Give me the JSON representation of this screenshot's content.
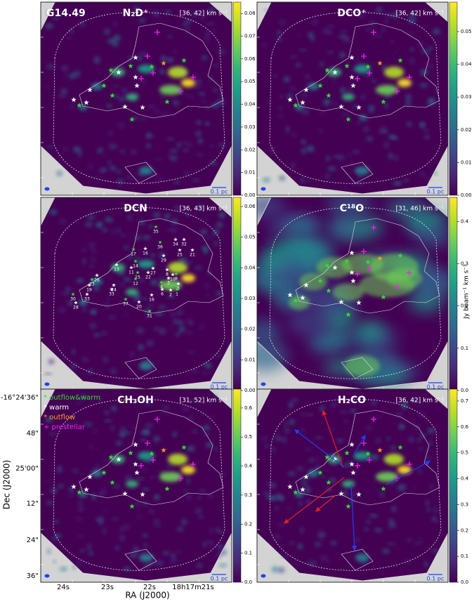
{
  "figure_label": "G14.49",
  "panels": [
    {
      "title": "N₂D⁺",
      "velocity_range": "[36, 42] km s⁻¹",
      "scale_bar": "0.1 pc",
      "colorbar": {
        "lim": [
          0,
          0.085
        ],
        "ticks": [
          {
            "value": 0,
            "label": "0.00"
          },
          {
            "value": 0.01,
            "label": "0.01"
          },
          {
            "value": 0.02,
            "label": "0.02"
          },
          {
            "value": 0.03,
            "label": "0.03"
          },
          {
            "value": 0.04,
            "label": "0.04"
          },
          {
            "value": 0.05,
            "label": "0.05"
          },
          {
            "value": 0.06,
            "label": "0.06"
          },
          {
            "value": 0.07,
            "label": "0.07"
          },
          {
            "value": 0.08,
            "label": "0.08"
          }
        ]
      }
    },
    {
      "title": "DCO⁺",
      "velocity_range": "[36, 42] km s⁻¹",
      "scale_bar": "0.1 pc",
      "colorbar": {
        "lim": [
          0,
          0.059
        ],
        "ticks": [
          {
            "value": 0,
            "label": "0.00"
          },
          {
            "value": 0.01,
            "label": "0.01"
          },
          {
            "value": 0.02,
            "label": "0.02"
          },
          {
            "value": 0.03,
            "label": "0.03"
          },
          {
            "value": 0.04,
            "label": "0.04"
          },
          {
            "value": 0.05,
            "label": "0.05"
          }
        ]
      }
    },
    {
      "title": "DCN",
      "velocity_range": "[36, 43] km s⁻¹",
      "scale_bar": "0.1 pc",
      "colorbar": {
        "lim": [
          0,
          0.063
        ],
        "ticks": [
          {
            "value": 0,
            "label": "0.00"
          },
          {
            "value": 0.01,
            "label": "0.01"
          },
          {
            "value": 0.02,
            "label": "0.02"
          },
          {
            "value": 0.03,
            "label": "0.03"
          },
          {
            "value": 0.04,
            "label": "0.04"
          },
          {
            "value": 0.05,
            "label": "0.05"
          },
          {
            "value": 0.06,
            "label": "0.06"
          }
        ]
      }
    },
    {
      "title": "C¹⁸O",
      "velocity_range": "[31, 46] km s⁻¹",
      "scale_bar": "0.1 pc",
      "colorbar": {
        "lim": [
          0,
          0.457
        ],
        "ticks": [
          {
            "value": 0,
            "label": "0.0"
          },
          0.1,
          0.2,
          0.3,
          0.4
        ]
      }
    },
    {
      "title": "CH₃OH",
      "velocity_range": "[31, 52] km s⁻¹",
      "scale_bar": "0.1 pc",
      "colorbar": {
        "lim": [
          0,
          0.665
        ],
        "ticks": [
          {
            "value": 0,
            "label": "0.0"
          },
          0.1,
          0.2,
          0.3,
          0.4,
          0.5,
          0.6
        ]
      }
    },
    {
      "title": "H₂CO",
      "velocity_range": "[36, 42] km s⁻¹",
      "scale_bar": "0.1 pc",
      "colorbar": {
        "lim": [
          0,
          0.746
        ],
        "ticks": [
          {
            "value": 0,
            "label": "0.0"
          },
          0.1,
          0.2,
          0.3,
          0.4,
          0.5,
          0.6,
          0.7
        ]
      }
    }
  ],
  "legend": [
    {
      "label": "* outflow&warm",
      "color": "#33dd33"
    },
    {
      "label": "* warm",
      "color": "#ffffff"
    },
    {
      "label": "* outflow",
      "color": "#ff9922"
    },
    {
      "label": "+ prestellar",
      "color": "#ee22ee"
    }
  ],
  "dcn_labels": [
    "35",
    "34",
    "32",
    "36",
    "25",
    "21",
    "17",
    "16",
    "29",
    "14",
    "11",
    "13",
    "15",
    "27",
    "8",
    "9",
    "26",
    "22",
    "12",
    "3",
    "10",
    "4",
    "5",
    "24",
    "1",
    "2",
    "6",
    "23",
    "19",
    "33",
    "30",
    "28",
    "33",
    "37",
    "20",
    "16",
    "31"
  ],
  "colorbar_label": "Jy beam⁻¹ km s⁻¹",
  "x_axis": {
    "label": "RA (J2000)",
    "ticks": [
      "24s",
      "23s",
      "22s",
      "18h17m21s"
    ]
  },
  "y_axis": {
    "label": "Dec (J2000)",
    "ticks": [
      "-16°24'36\"",
      "48\"",
      "25'00\"",
      "12\"",
      "24\"",
      "36\""
    ]
  }
}
